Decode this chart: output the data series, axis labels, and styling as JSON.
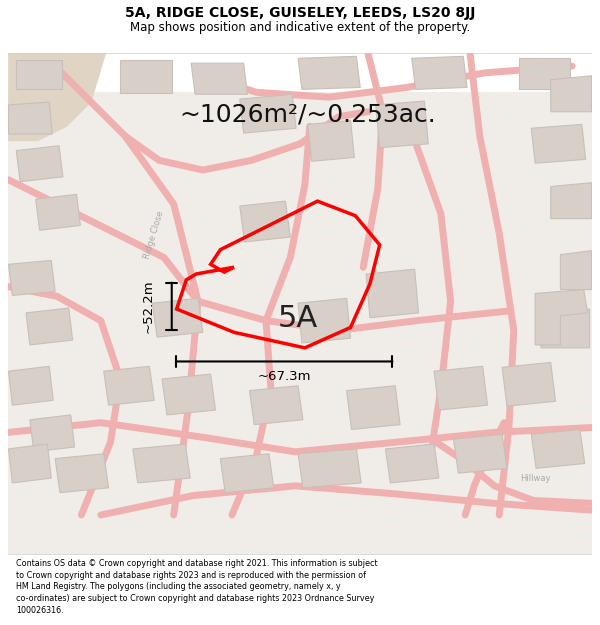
{
  "title_line1": "5A, RIDGE CLOSE, GUISELEY, LEEDS, LS20 8JJ",
  "title_line2": "Map shows position and indicative extent of the property.",
  "area_text": "~1026m²/~0.253ac.",
  "label_5A": "5A",
  "dim_vertical": "~52.2m",
  "dim_horizontal": "~67.3m",
  "footer_lines": [
    "Contains OS data © Crown copyright and database right 2021. This information is subject",
    "to Crown copyright and database rights 2023 and is reproduced with the permission of",
    "HM Land Registry. The polygons (including the associated geometry, namely x, y",
    "co-ordinates) are subject to Crown copyright and database rights 2023 Ordnance Survey",
    "100026316."
  ],
  "map_bg": "#f0ece8",
  "road_color": "#f0b0b0",
  "building_color": "#d8d0c8",
  "building_edge": "#c8c0b8",
  "highlight_color": "#ff0000",
  "dim_color": "#000000",
  "title_color": "#000000",
  "footer_color": "#000000",
  "header_bg": "#ffffff",
  "footer_bg": "#ffffff"
}
